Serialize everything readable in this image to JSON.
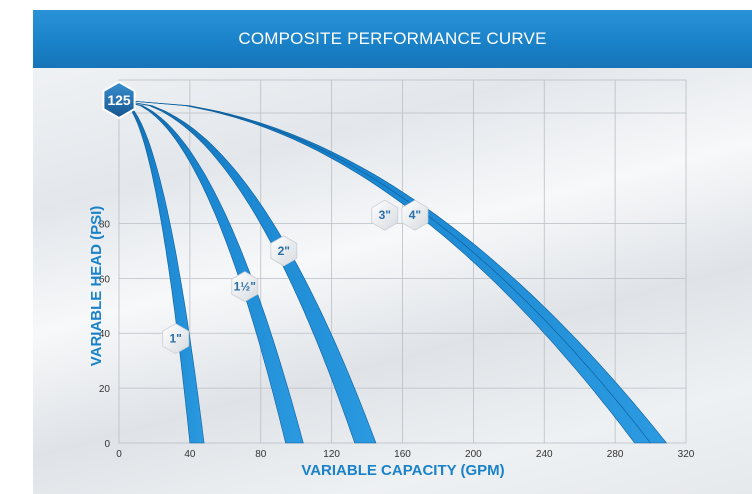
{
  "header": {
    "title": "COMPOSITE PERFORMANCE CURVE"
  },
  "colors": {
    "header": "#1a82c9",
    "curve": "#1a86d0",
    "curve_dark": "#0d5f9e",
    "axis_title": "#1a82c9",
    "badge": "#1f6fb2"
  },
  "chart_data": {
    "type": "line",
    "title": "COMPOSITE PERFORMANCE CURVE",
    "xlabel": "VARIABLE CAPACITY (GPM)",
    "ylabel": "VARIABLE HEAD (PSI)",
    "xlim": [
      0,
      320
    ],
    "ylim": [
      0,
      125
    ],
    "x_ticks": [
      "0",
      "40",
      "80",
      "120",
      "160",
      "200",
      "240",
      "280",
      "320"
    ],
    "y_ticks": [
      "0",
      "20",
      "40",
      "60",
      "80"
    ],
    "max_head_label": "125",
    "grid": true,
    "series": [
      {
        "name": "1\"",
        "shutoff_head": 125,
        "max_flow": [
          40,
          48
        ]
      },
      {
        "name": "1½\"",
        "shutoff_head": 125,
        "max_flow": [
          94,
          104
        ]
      },
      {
        "name": "2\"",
        "shutoff_head": 125,
        "max_flow": [
          133,
          145
        ]
      },
      {
        "name": "3\"",
        "shutoff_head": 125,
        "max_flow": [
          291,
          300
        ]
      },
      {
        "name": "4\"",
        "shutoff_head": 125,
        "max_flow": [
          300,
          309
        ]
      }
    ]
  }
}
